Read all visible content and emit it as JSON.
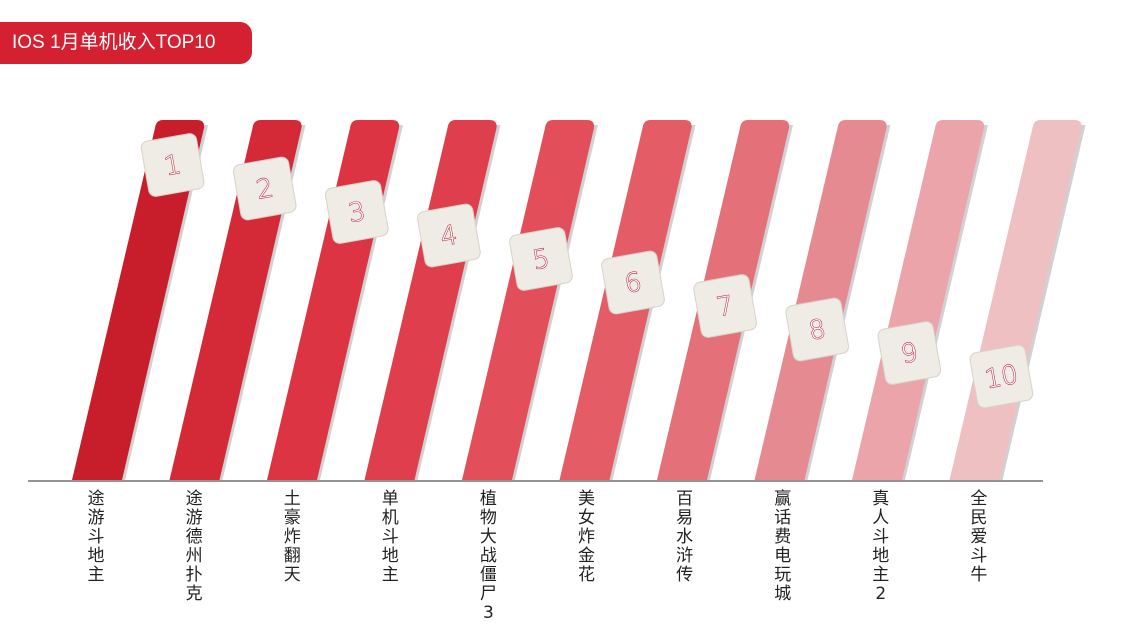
{
  "chart_data": {
    "type": "bar",
    "title": "IOS 1月单机收入TOP10",
    "categories": [
      "途游斗地主",
      "途游德州扑克",
      "土豪炸翻天",
      "单机斗地主",
      "植物大战僵尸3",
      "美女炸金花",
      "百易水浒传",
      "赢话费电玩城",
      "真人斗地主2",
      "全民爱斗牛"
    ],
    "ranks": [
      "1",
      "2",
      "3",
      "4",
      "5",
      "6",
      "7",
      "8",
      "9",
      "10"
    ],
    "colors": [
      "#c81e2c",
      "#d42a38",
      "#dc3442",
      "#df3e4c",
      "#e24e5a",
      "#e45c66",
      "#e4707a",
      "#e68a92",
      "#eaa4aa",
      "#eec0c2"
    ],
    "xlabel": "",
    "ylabel": "",
    "grid": false,
    "legend": "none"
  }
}
